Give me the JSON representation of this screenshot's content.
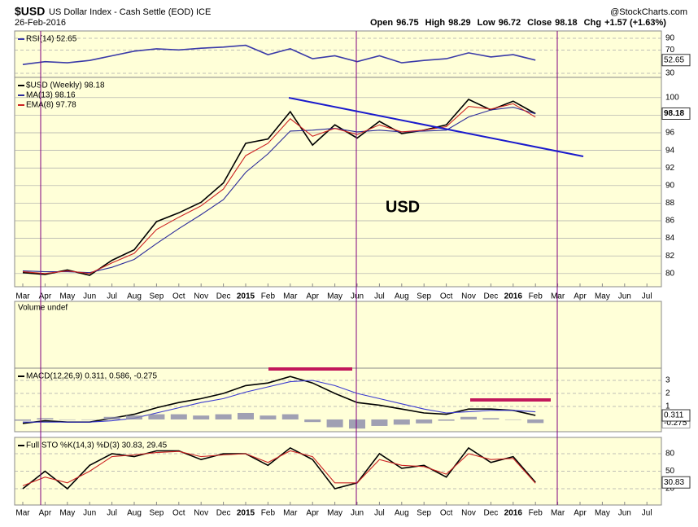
{
  "header": {
    "symbol": "$USD",
    "name": "US Dollar Index - Cash Settle (EOD) ICE",
    "source": "@StockCharts.com",
    "date": "26-Feb-2016",
    "open_label": "Open",
    "open": 96.75,
    "high_label": "High",
    "high": 98.29,
    "low_label": "Low",
    "low": 96.72,
    "close_label": "Close",
    "close": 98.18,
    "chg_label": "Chg",
    "chg": "+1.57 (+1.63%)"
  },
  "annotation": "USD",
  "volume_legend": "Volume undef",
  "chart_data": [
    {
      "type": "line",
      "legend": [
        "RSI(14) 52.65"
      ],
      "ylim": [
        23,
        102.6
      ],
      "yticks": [
        30,
        70,
        90
      ],
      "last_label": "52.65",
      "series": [
        {
          "name": "RSI(14)",
          "color": "#3a3aa8",
          "values": [
            45,
            50,
            48,
            52,
            60,
            68,
            72,
            70,
            73,
            75,
            78,
            62,
            72,
            55,
            60,
            50,
            60,
            48,
            52,
            55,
            65,
            58,
            62,
            52.65,
            null,
            null,
            null,
            null,
            null
          ]
        }
      ]
    },
    {
      "type": "line",
      "legend": [
        "$USD (Weekly) 98.18",
        "MA(13) 98.16",
        "EMA(8) 97.78"
      ],
      "ylim": [
        78.5,
        102.3
      ],
      "yticks": [
        80,
        82,
        84,
        86,
        88,
        90,
        92,
        94,
        96,
        98,
        100
      ],
      "last_label": "98.18",
      "categories": [
        "Mar",
        "Apr",
        "May",
        "Jun",
        "Jul",
        "Aug",
        "Sep",
        "Oct",
        "Nov",
        "Dec",
        "2015",
        "Feb",
        "Mar",
        "Apr",
        "May",
        "Jun",
        "Jul",
        "Aug",
        "Sep",
        "Oct",
        "Nov",
        "Dec",
        "2016",
        "Feb",
        "Mar",
        "Apr",
        "May",
        "Jun",
        "Jul"
      ],
      "series": [
        {
          "name": "$USD (Weekly)",
          "color": "#000000",
          "values": [
            80.1,
            79.9,
            80.4,
            79.8,
            81.5,
            82.7,
            85.9,
            86.9,
            88.1,
            90.3,
            94.8,
            95.3,
            98.4,
            94.6,
            96.9,
            95.4,
            97.3,
            95.9,
            96.3,
            96.9,
            99.8,
            98.6,
            99.6,
            98.18,
            null,
            null,
            null,
            null,
            null
          ]
        },
        {
          "name": "MA(13)",
          "color": "#2b2b9a",
          "values": [
            80.3,
            80.2,
            80.2,
            80.1,
            80.7,
            81.6,
            83.4,
            85.1,
            86.7,
            88.4,
            91.5,
            93.6,
            96.2,
            96.3,
            96.5,
            96.1,
            96.3,
            96.1,
            96.2,
            96.3,
            97.8,
            98.6,
            98.9,
            98.16,
            null,
            null,
            null,
            null,
            null
          ]
        },
        {
          "name": "EMA(8)",
          "color": "#cc2222",
          "values": [
            80.2,
            80.0,
            80.3,
            80.0,
            81.2,
            82.3,
            85.0,
            86.4,
            87.7,
            89.6,
            93.4,
            94.8,
            97.6,
            95.6,
            96.5,
            95.8,
            96.9,
            96.1,
            96.3,
            96.7,
            99.0,
            98.7,
            99.3,
            97.78,
            null,
            null,
            null,
            null,
            null
          ]
        }
      ]
    },
    {
      "type": "line",
      "legend": [
        "MACD(12,26,9) 0.311, 0.586, -0.275"
      ],
      "ylim": [
        -0.94,
        3.94
      ],
      "yticks": [
        1,
        2,
        3
      ],
      "last_label": "0.311",
      "series": [
        {
          "name": "MACD",
          "color": "#000000",
          "values": [
            -0.3,
            -0.1,
            -0.2,
            -0.2,
            0.1,
            0.4,
            0.9,
            1.3,
            1.6,
            2.0,
            2.6,
            2.8,
            3.3,
            2.8,
            2.0,
            1.3,
            1.1,
            0.8,
            0.5,
            0.4,
            0.8,
            0.8,
            0.7,
            0.311,
            null,
            null,
            null,
            null,
            null
          ]
        },
        {
          "name": "Signal",
          "color": "#3a3ad0",
          "values": [
            -0.2,
            -0.2,
            -0.2,
            -0.2,
            -0.1,
            0.1,
            0.5,
            0.9,
            1.3,
            1.6,
            2.1,
            2.5,
            2.9,
            3.0,
            2.6,
            2.0,
            1.6,
            1.2,
            0.8,
            0.5,
            0.6,
            0.7,
            0.7,
            0.586,
            null,
            null,
            null,
            null,
            null
          ]
        },
        {
          "name": "Histogram",
          "color": "#8888aa",
          "kind": "bar",
          "last_label": "-0.275",
          "values": [
            -0.1,
            0.1,
            0,
            0,
            0.2,
            0.3,
            0.4,
            0.4,
            0.3,
            0.4,
            0.5,
            0.3,
            0.4,
            -0.2,
            -0.6,
            -0.7,
            -0.5,
            -0.4,
            -0.3,
            -0.1,
            0.2,
            0.1,
            0,
            -0.275,
            null,
            null,
            null,
            null,
            null
          ]
        }
      ]
    },
    {
      "type": "line",
      "legend": [
        "Full STO %K(14,3) %D(3) 30.83, 29.45"
      ],
      "ylim": [
        -8,
        108
      ],
      "yticks": [
        20,
        50,
        80
      ],
      "last_label": "30.83",
      "categories": [
        "Mar",
        "Apr",
        "May",
        "Jun",
        "Jul",
        "Aug",
        "Sep",
        "Oct",
        "Nov",
        "Dec",
        "2015",
        "Feb",
        "Mar",
        "Apr",
        "May",
        "Jun",
        "Jul",
        "Aug",
        "Sep",
        "Oct",
        "Nov",
        "Dec",
        "2016",
        "Feb",
        "Mar",
        "Apr",
        "May",
        "Jun",
        "Jul"
      ],
      "series": [
        {
          "name": "%K",
          "color": "#000000",
          "values": [
            20,
            50,
            20,
            60,
            80,
            75,
            85,
            85,
            70,
            80,
            80,
            60,
            90,
            70,
            20,
            30,
            80,
            55,
            60,
            40,
            90,
            65,
            75,
            30.83,
            null,
            null,
            null,
            null,
            null
          ]
        },
        {
          "name": "%D",
          "color": "#cc2222",
          "values": [
            25,
            40,
            30,
            50,
            75,
            78,
            82,
            84,
            75,
            78,
            80,
            65,
            85,
            75,
            30,
            30,
            70,
            60,
            58,
            45,
            80,
            70,
            72,
            29.45,
            null,
            null,
            null,
            null,
            null
          ]
        }
      ]
    }
  ]
}
